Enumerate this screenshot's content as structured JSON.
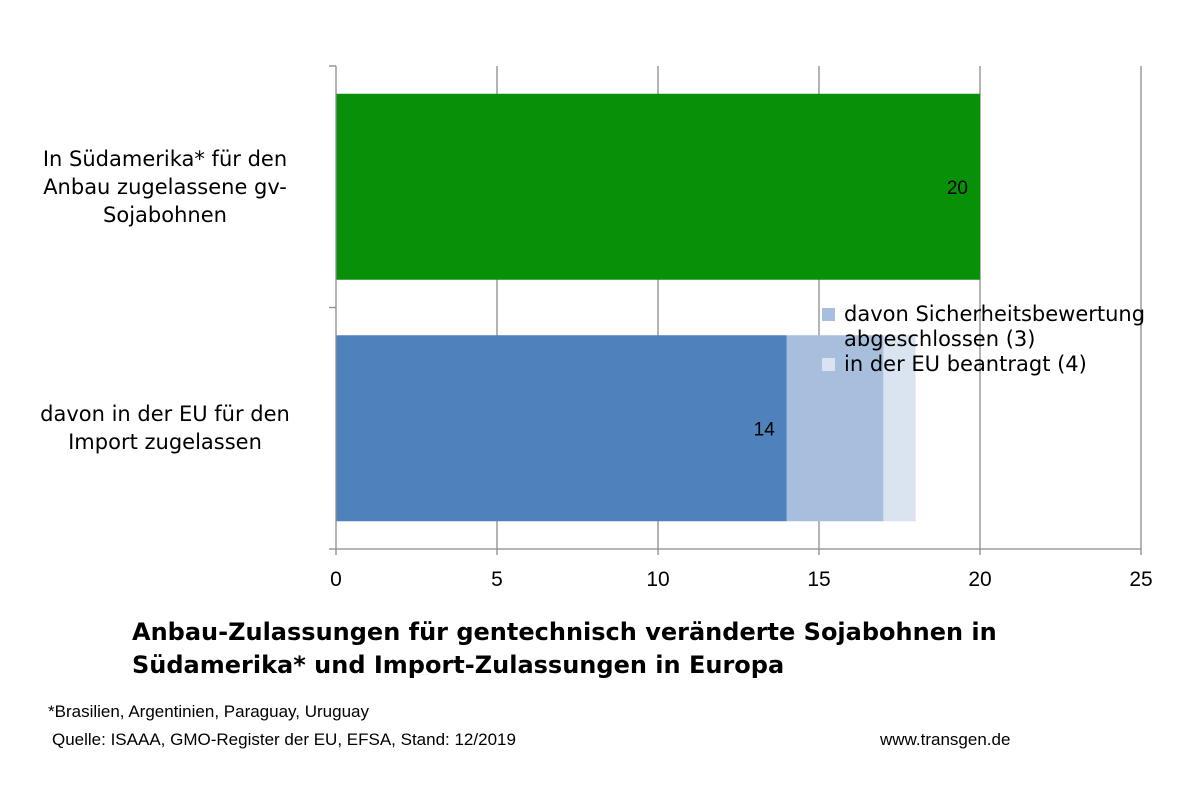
{
  "chart_data": {
    "type": "bar",
    "orientation": "horizontal",
    "stacked": true,
    "title": "Anbau-Zulassungen für gentechnisch veränderte Sojabohnen in Südamerika* und Import-Zulassungen in Europa",
    "title_lines": [
      "Anbau-Zulassungen für gentechnisch veränderte Sojabohnen in",
      "Südamerika* und Import-Zulassungen in Europa"
    ],
    "categories": [
      "In Südamerika* für den Anbau zugelassene gv-Sojabohnen",
      "davon in der EU für den Import zugelassen"
    ],
    "category_lines": [
      [
        "In Südamerika* für den",
        "Anbau zugelassene gv-",
        "Sojabohnen"
      ],
      [
        "davon in der EU für den",
        "Import zugelassen"
      ]
    ],
    "series": [
      {
        "name": "",
        "values": [
          20,
          14
        ],
        "colors": [
          "#089108",
          "#4f81bd"
        ],
        "labels": [
          "20",
          "14"
        ]
      },
      {
        "name": "davon Sicherheitsbewertung abgeschlossen (3)",
        "values": [
          0,
          3
        ],
        "color": "#a7bedd"
      },
      {
        "name": "in der EU beantragt (4)",
        "values": [
          0,
          1
        ],
        "color": "#dae3f0"
      }
    ],
    "xlim": [
      0,
      25
    ],
    "xticks": [
      0,
      5,
      10,
      15,
      20,
      25
    ],
    "xlabel": "",
    "ylabel": "",
    "grid": true,
    "legend_position": "right",
    "legend_lines": [
      [
        "davon Sicherheitsbewertung",
        "abgeschlossen (3)"
      ],
      [
        "in der EU beantragt (4)"
      ]
    ]
  },
  "footnote": "*Brasilien, Argentinien, Paraguay, Uruguay",
  "source": "Quelle: ISAAA,  GMO-Register der EU, EFSA, Stand: 12/2019",
  "website": "www.transgen.de"
}
